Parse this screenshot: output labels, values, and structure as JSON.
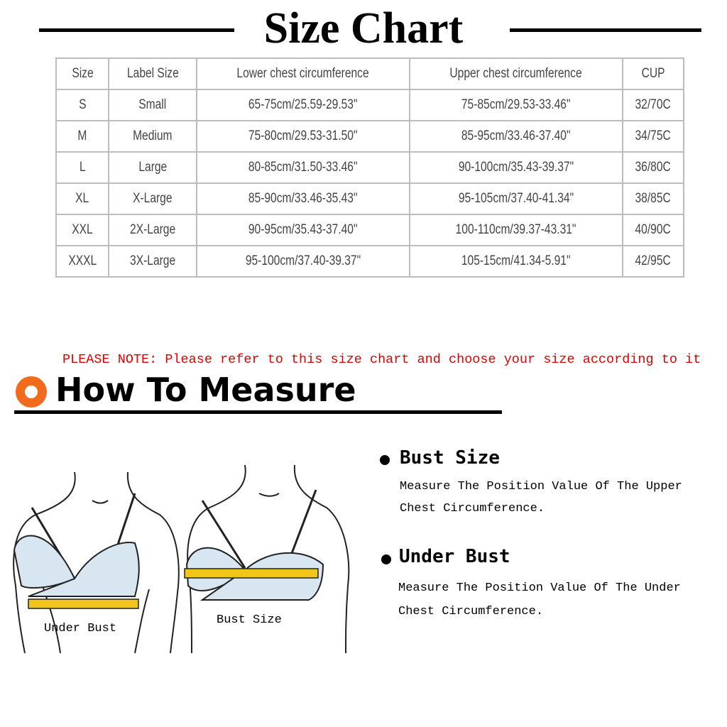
{
  "header": {
    "title": "Size Chart"
  },
  "table": {
    "columns": [
      "Size",
      "Label Size",
      "Lower chest circumference",
      "Upper chest circumference",
      "CUP"
    ],
    "rows": [
      [
        "S",
        "Small",
        "65-75cm/25.59-29.53\"",
        "75-85cm/29.53-33.46\"",
        "32/70C"
      ],
      [
        "M",
        "Medium",
        "75-80cm/29.53-31.50\"",
        "85-95cm/33.46-37.40\"",
        "34/75C"
      ],
      [
        "L",
        "Large",
        "80-85cm/31.50-33.46\"",
        "90-100cm/35.43-39.37\"",
        "36/80C"
      ],
      [
        "XL",
        "X-Large",
        "85-90cm/33.46-35.43\"",
        "95-105cm/37.40-41.34\"",
        "38/85C"
      ],
      [
        "XXL",
        "2X-Large",
        "90-95cm/35.43-37.40\"",
        "100-110cm/39.37-43.31\"",
        "40/90C"
      ],
      [
        "XXXL",
        "3X-Large",
        "95-100cm/37.40-39.37\"",
        "105-15cm/41.34-5.91\"",
        "42/95C"
      ]
    ]
  },
  "note": "PLEASE NOTE: Please refer to this size chart and choose your size according to it",
  "measure": {
    "title": "How To Measure",
    "accent_color": "#f26a1b",
    "items": [
      {
        "heading": "Bust Size",
        "lines": [
          "Measure The Position Value Of The Upper",
          "Chest Circumference."
        ]
      },
      {
        "heading": "Under Bust",
        "lines": [
          "Measure The Position Value Of The Under",
          "Chest Circumference."
        ]
      }
    ],
    "figures": [
      {
        "label": "Under Bust"
      },
      {
        "label": "Bust Size"
      }
    ],
    "tape_color": "#f2c51c"
  }
}
